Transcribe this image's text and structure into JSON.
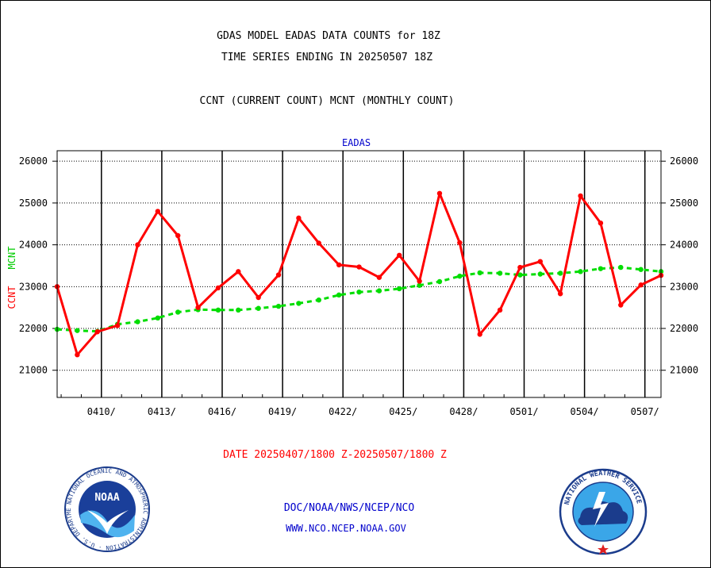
{
  "header": {
    "title_line1": "GDAS MODEL EADAS DATA COUNTS for 18Z",
    "title_line2": "TIME SERIES ENDING IN 20250507 18Z",
    "subtitle": "CCNT (CURRENT COUNT) MCNT (MONTHLY COUNT)"
  },
  "footer": {
    "date_range": "DATE 20250407/1800 Z-20250507/1800 Z",
    "org_path": "DOC/NOAA/NWS/NCEP/NCO",
    "website": "WWW.NCO.NCEP.NOAA.GOV",
    "noaa_logo_text": "NOAA",
    "noaa_ring_text": "NATIONAL OCEANIC AND ATMOSPHERIC ADMINISTRATION · U.S. DEPARTMENT OF COMMERCE",
    "nws_ring_text": "NATIONAL WEATHER SERVICE"
  },
  "colors": {
    "ccnt": "#ff0000",
    "mcnt": "#00dd00",
    "panel_title": "#0000cc",
    "axis": "#000000"
  },
  "chart_data": {
    "type": "line",
    "panel_title": "EADAS",
    "ylabel_ccnt": "CCNT",
    "ylabel_mcnt": "MCNT",
    "ylim": [
      20350,
      26250
    ],
    "yticks": [
      21000,
      22000,
      23000,
      24000,
      25000,
      26000
    ],
    "ytick_labels": [
      "21000",
      "22000",
      "23000",
      "24000",
      "25000",
      "26000"
    ],
    "xlim": [
      0,
      30
    ],
    "xtick_positions": [
      2.2,
      5.2,
      8.2,
      11.2,
      14.2,
      17.2,
      20.2,
      23.2,
      26.2,
      29.2
    ],
    "xtick_labels": [
      "0410/",
      "0413/",
      "0416/",
      "0419/",
      "0422/",
      "0425/",
      "0428/",
      "0501/",
      "0504/",
      "0507/"
    ],
    "grid": true,
    "series": [
      {
        "name": "CCNT",
        "values": [
          23000,
          21370,
          21920,
          22070,
          24000,
          24800,
          24220,
          22500,
          22970,
          23360,
          22740,
          23280,
          24640,
          24040,
          23520,
          23470,
          23220,
          23750,
          23130,
          25230,
          24050,
          21860,
          22440,
          23460,
          23600,
          22830,
          25170,
          24520,
          22560,
          23040,
          23270
        ]
      },
      {
        "name": "MCNT",
        "values": [
          21980,
          21950,
          21930,
          22100,
          22160,
          22250,
          22390,
          22450,
          22440,
          22440,
          22480,
          22530,
          22600,
          22680,
          22800,
          22870,
          22900,
          22950,
          23030,
          23120,
          23250,
          23330,
          23320,
          23280,
          23300,
          23320,
          23360,
          23430,
          23460,
          23410,
          23360
        ]
      }
    ]
  }
}
